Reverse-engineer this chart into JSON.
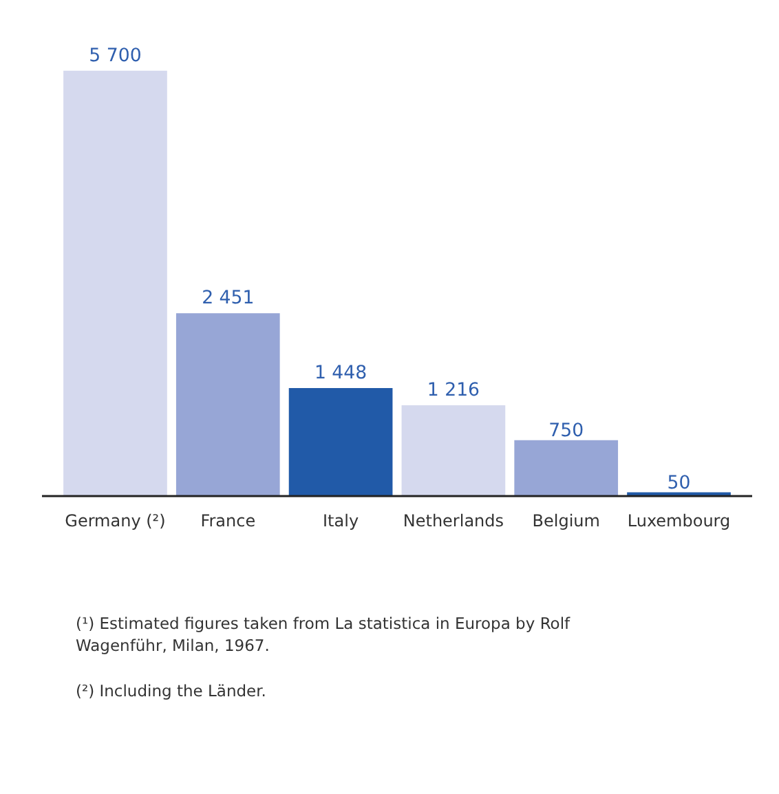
{
  "chart_data": {
    "type": "bar",
    "categories": [
      "Germany (²)",
      "France",
      "Italy",
      "Netherlands",
      "Belgium",
      "Luxembourg"
    ],
    "values": [
      5700,
      2451,
      1448,
      1216,
      750,
      50
    ],
    "colors": [
      "#d5d9ee",
      "#97a6d6",
      "#215aa8",
      "#d5d9ee",
      "#97a6d6",
      "#215aa8"
    ],
    "data_labels": true,
    "grid": false,
    "annotations": [
      "(¹) Estimated figures taken from La statistica in Europa by Rolf Wagenführ, Milan, 1967.",
      "(²) Including the Länder."
    ]
  }
}
